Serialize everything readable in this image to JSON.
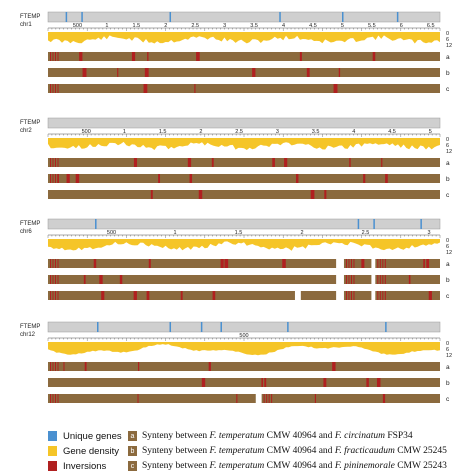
{
  "colors": {
    "gene_density": "#f5c528",
    "synteny": "#8b6a3e",
    "inversion": "#b02020",
    "unique": "#4a90d0",
    "track_bg": "#cfcfcf"
  },
  "panels": [
    {
      "name_line1": "FTEMP",
      "name_line2": "chr1",
      "ticks": [
        "500",
        "1",
        "1.5",
        "2",
        "2.5",
        "3",
        "3.5",
        "4",
        "4.5",
        "5",
        "5.5",
        "6",
        "6.5"
      ],
      "density_scale": [
        "0",
        "6",
        "12"
      ],
      "row_labels": [
        "a",
        "b",
        "c"
      ]
    },
    {
      "name_line1": "FTEMP",
      "name_line2": "chr2",
      "ticks": [
        "500",
        "1",
        "1.5",
        "2",
        "2.5",
        "3",
        "3.5",
        "4",
        "4.5",
        "5"
      ],
      "density_scale": [
        "0",
        "6",
        "12"
      ],
      "row_labels": [
        "a",
        "b",
        "c"
      ]
    },
    {
      "name_line1": "FTEMP",
      "name_line2": "chr6",
      "ticks": [
        "500",
        "1",
        "1.5",
        "2",
        "2.5",
        "3"
      ],
      "density_scale": [
        "0",
        "6",
        "12"
      ],
      "row_labels": [
        "a",
        "b",
        "c"
      ]
    },
    {
      "name_line1": "FTEMP",
      "name_line2": "chr12",
      "ticks": [
        "500"
      ],
      "density_scale": [
        "0",
        "6",
        "12"
      ],
      "row_labels": [
        "a",
        "b",
        "c"
      ]
    }
  ],
  "legend": {
    "unique": "Unique genes",
    "density": "Gene density",
    "inversions": "Inversions",
    "a": {
      "badge": "a",
      "pre": "Synteny between ",
      "sp1": "F. temperatum",
      "mid": " CMW 40964 and ",
      "sp2": "F. circinatum",
      "post": " FSP34"
    },
    "b": {
      "badge": "b",
      "pre": "Synteny between ",
      "sp1": "F. temperatum",
      "mid": " CMW 40964 and ",
      "sp2": "F. fracticaudum",
      "post": " CMW 25245"
    },
    "c": {
      "badge": "c",
      "pre": "Synteny between ",
      "sp1": "F. temperatum",
      "mid": " CMW 40964 and ",
      "sp2": "F. pininemorale",
      "post": " CMW 25243"
    }
  }
}
